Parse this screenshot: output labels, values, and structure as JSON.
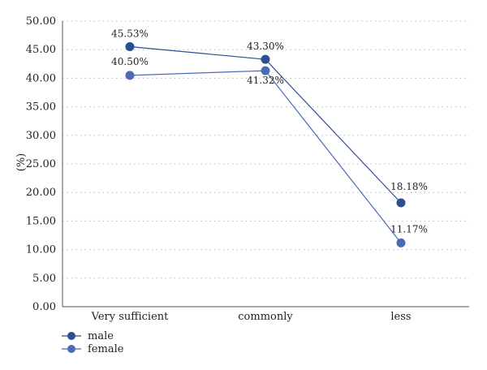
{
  "chart_data": {
    "type": "line",
    "title": "",
    "xlabel": "",
    "ylabel": "(%)",
    "categories": [
      "Very sufficient",
      "commonly",
      "less"
    ],
    "ylim": [
      0,
      50
    ],
    "yticks": [
      "0.00",
      "5.00",
      "10.00",
      "15.00",
      "20.00",
      "25.00",
      "30.00",
      "35.00",
      "40.00",
      "45.00",
      "50.00"
    ],
    "grid": true,
    "legend_position": "bottom-left",
    "series": [
      {
        "name": "male",
        "values": [
          45.53,
          43.3,
          18.18
        ],
        "labels": [
          "45.53%",
          "43.30%",
          "18.18%"
        ],
        "color": "#2e4f8f"
      },
      {
        "name": "female",
        "values": [
          40.5,
          41.32,
          11.17
        ],
        "labels": [
          "40.50%",
          "41.32%",
          "11.17%"
        ],
        "color": "#4a6cb3"
      }
    ]
  }
}
